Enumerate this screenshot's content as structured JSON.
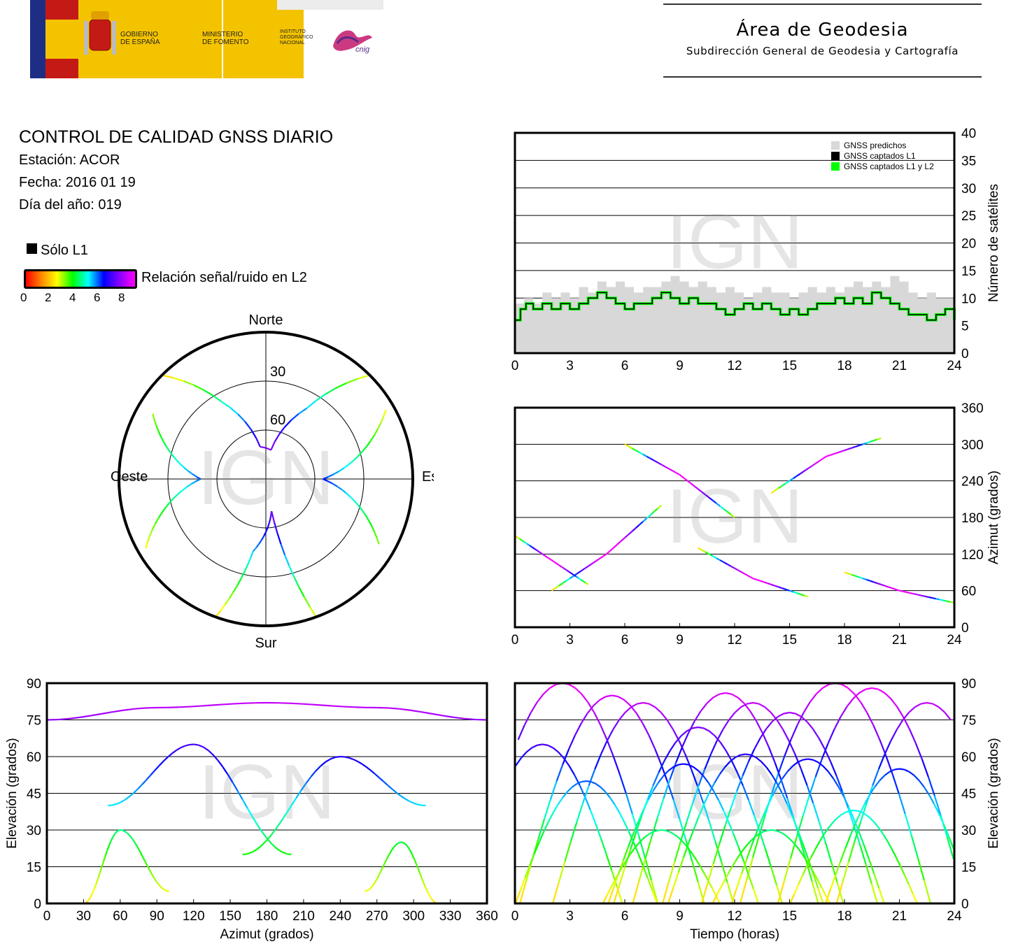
{
  "header": {
    "gov_line1": "GOBIERNO",
    "gov_line2": "DE ESPAÑA",
    "min_line1": "MINISTERIO",
    "min_line2": "DE FOMENTO",
    "inst_line1": "INSTITUTO",
    "inst_line2": "GEOGRÁFICO",
    "inst_line3": "NACIONAL",
    "cnig": "cnig",
    "area_title": "Área de Geodesia",
    "area_subtitle": "Subdirección General de Geodesia y Cartografía"
  },
  "info": {
    "title": "CONTROL DE CALIDAD GNSS DIARIO",
    "station": "Estación: ACOR",
    "date": "Fecha: 2016 01 19",
    "doy": "Día del año: 019"
  },
  "legend": {
    "l1_only": "Sólo L1",
    "snr_label": "Relación señal/ruido en L2",
    "snr_ticks": [
      "0",
      "2",
      "4",
      "6",
      "8"
    ],
    "snr_colors": [
      "#ff0000",
      "#ff8800",
      "#ffff00",
      "#00ff00",
      "#00ffff",
      "#0000ff",
      "#8800ff",
      "#ff00ff"
    ],
    "l1_color": "#000000"
  },
  "watermark": "IGN",
  "chart_data": [
    {
      "id": "sats",
      "type": "area",
      "ylabel": "Número de satélites",
      "x_ticks": [
        "0",
        "3",
        "6",
        "9",
        "12",
        "15",
        "18",
        "21",
        "24"
      ],
      "y_ticks": [
        "0",
        "5",
        "10",
        "15",
        "20",
        "25",
        "30",
        "35",
        "40"
      ],
      "xlim": [
        0,
        24
      ],
      "ylim": [
        0,
        40
      ],
      "legend": [
        "GNSS predichos",
        "GNSS captados L1",
        "GNSS captados L1 y L2"
      ],
      "colors": {
        "predicted": "#d8d8d8",
        "l1": "#000000",
        "l1l2": "#00ff00"
      },
      "predicted": [
        [
          0,
          9
        ],
        [
          0.5,
          10
        ],
        [
          1,
          9
        ],
        [
          1.5,
          11
        ],
        [
          2,
          10
        ],
        [
          2.5,
          11
        ],
        [
          3,
          10
        ],
        [
          3.5,
          12
        ],
        [
          4,
          11
        ],
        [
          4.5,
          13
        ],
        [
          5,
          12
        ],
        [
          5.5,
          13
        ],
        [
          6,
          12
        ],
        [
          6.5,
          11
        ],
        [
          7,
          12
        ],
        [
          7.5,
          12
        ],
        [
          8,
          13
        ],
        [
          8.5,
          14
        ],
        [
          9,
          13
        ],
        [
          9.5,
          12
        ],
        [
          10,
          13
        ],
        [
          10.5,
          12
        ],
        [
          11,
          11
        ],
        [
          11.5,
          12
        ],
        [
          12,
          11
        ],
        [
          12.5,
          10
        ],
        [
          13,
          11
        ],
        [
          13.5,
          12
        ],
        [
          14,
          11
        ],
        [
          14.5,
          11
        ],
        [
          15,
          10
        ],
        [
          15.5,
          11
        ],
        [
          16,
          12
        ],
        [
          16.5,
          11
        ],
        [
          17,
          12
        ],
        [
          17.5,
          11
        ],
        [
          18,
          12
        ],
        [
          18.5,
          13
        ],
        [
          19,
          12
        ],
        [
          19.5,
          13
        ],
        [
          20,
          12
        ],
        [
          20.5,
          14
        ],
        [
          21,
          13
        ],
        [
          21.5,
          11
        ],
        [
          22,
          10
        ],
        [
          22.5,
          11
        ],
        [
          23,
          10
        ],
        [
          23.5,
          10
        ],
        [
          24,
          9
        ]
      ],
      "captured": [
        [
          0,
          6
        ],
        [
          0.3,
          8
        ],
        [
          0.6,
          9
        ],
        [
          1,
          8
        ],
        [
          1.5,
          9
        ],
        [
          2,
          8
        ],
        [
          2.5,
          9
        ],
        [
          3,
          8
        ],
        [
          3.5,
          9
        ],
        [
          4,
          10
        ],
        [
          4.5,
          11
        ],
        [
          5,
          10
        ],
        [
          5.5,
          9
        ],
        [
          6,
          8
        ],
        [
          6.5,
          9
        ],
        [
          7,
          9
        ],
        [
          7.5,
          10
        ],
        [
          8,
          11
        ],
        [
          8.5,
          10
        ],
        [
          9,
          9
        ],
        [
          9.5,
          10
        ],
        [
          10,
          9
        ],
        [
          10.5,
          9
        ],
        [
          11,
          8
        ],
        [
          11.5,
          7
        ],
        [
          12,
          8
        ],
        [
          12.5,
          9
        ],
        [
          13,
          8
        ],
        [
          13.5,
          9
        ],
        [
          14,
          8
        ],
        [
          14.5,
          7
        ],
        [
          15,
          8
        ],
        [
          15.5,
          7
        ],
        [
          16,
          8
        ],
        [
          16.5,
          9
        ],
        [
          17,
          9
        ],
        [
          17.5,
          10
        ],
        [
          18,
          9
        ],
        [
          18.5,
          10
        ],
        [
          19,
          9
        ],
        [
          19.5,
          11
        ],
        [
          20,
          10
        ],
        [
          20.5,
          9
        ],
        [
          21,
          8
        ],
        [
          21.5,
          7
        ],
        [
          22,
          7
        ],
        [
          22.5,
          6
        ],
        [
          23,
          7
        ],
        [
          23.5,
          8
        ],
        [
          24,
          6
        ]
      ]
    },
    {
      "id": "azimuth",
      "type": "scatter",
      "ylabel": "Azimut (grados)",
      "x_ticks": [
        "0",
        "3",
        "6",
        "9",
        "12",
        "15",
        "18",
        "21",
        "24"
      ],
      "y_ticks": [
        "0",
        "60",
        "120",
        "180",
        "240",
        "300",
        "360"
      ],
      "xlim": [
        0,
        24
      ],
      "ylim": [
        0,
        360
      ],
      "tracks": [
        {
          "x": [
            0,
            2,
            4
          ],
          "y": [
            150,
            110,
            70
          ]
        },
        {
          "x": [
            2,
            5,
            8
          ],
          "y": [
            60,
            120,
            200
          ]
        },
        {
          "x": [
            6,
            9,
            12
          ],
          "y": [
            300,
            250,
            180
          ]
        },
        {
          "x": [
            10,
            13,
            16
          ],
          "y": [
            130,
            80,
            50
          ]
        },
        {
          "x": [
            14,
            17,
            20
          ],
          "y": [
            220,
            280,
            310
          ]
        },
        {
          "x": [
            18,
            21,
            24
          ],
          "y": [
            90,
            60,
            40
          ]
        }
      ]
    },
    {
      "id": "skyplot",
      "type": "scatter",
      "title": "",
      "labels": {
        "north": "Norte",
        "south": "Sur",
        "east": "Este",
        "west": "Oeste"
      },
      "ring_labels": [
        "30",
        "60"
      ],
      "tracks": [
        {
          "az": [
            315,
            330,
            350,
            10,
            30,
            45
          ],
          "el": [
            0,
            35,
            70,
            72,
            40,
            0
          ]
        },
        {
          "az": [
            200,
            190,
            170,
            160
          ],
          "el": [
            0,
            45,
            70,
            0
          ]
        },
        {
          "az": [
            60,
            90,
            120
          ],
          "el": [
            5,
            55,
            10
          ]
        },
        {
          "az": [
            240,
            270,
            300
          ],
          "el": [
            5,
            50,
            10
          ]
        }
      ]
    },
    {
      "id": "elev_az",
      "type": "scatter",
      "xlabel": "Azimut (grados)",
      "ylabel": "Elevación (grados)",
      "x_ticks": [
        "0",
        "30",
        "60",
        "90",
        "120",
        "150",
        "180",
        "210",
        "240",
        "270",
        "300",
        "330",
        "360"
      ],
      "y_ticks": [
        "0",
        "15",
        "30",
        "45",
        "60",
        "75",
        "90"
      ],
      "xlim": [
        0,
        360
      ],
      "ylim": [
        0,
        90
      ],
      "tracks": [
        {
          "x": [
            0,
            90,
            180,
            270,
            360
          ],
          "y": [
            75,
            80,
            82,
            80,
            75
          ]
        },
        {
          "x": [
            50,
            120,
            200
          ],
          "y": [
            40,
            65,
            20
          ]
        },
        {
          "x": [
            160,
            240,
            310
          ],
          "y": [
            20,
            60,
            40
          ]
        },
        {
          "x": [
            30,
            60,
            100
          ],
          "y": [
            0,
            30,
            5
          ]
        },
        {
          "x": [
            260,
            290,
            320
          ],
          "y": [
            5,
            25,
            0
          ]
        }
      ]
    },
    {
      "id": "elev_time",
      "type": "scatter",
      "xlabel": "Tiempo (horas)",
      "ylabel": "Elevación (grados)",
      "x_ticks": [
        "0",
        "3",
        "6",
        "9",
        "12",
        "15",
        "18",
        "21",
        "24"
      ],
      "y_ticks": [
        "0",
        "15",
        "30",
        "45",
        "60",
        "75",
        "90"
      ],
      "xlim": [
        0,
        24
      ],
      "ylim": [
        0,
        90
      ],
      "peaks": [
        [
          1.5,
          65
        ],
        [
          2.6,
          90
        ],
        [
          5.3,
          85
        ],
        [
          7,
          82
        ],
        [
          10,
          72
        ],
        [
          11.5,
          86
        ],
        [
          13,
          82
        ],
        [
          15,
          78
        ],
        [
          17.5,
          90
        ],
        [
          19.5,
          88
        ],
        [
          22.5,
          82
        ],
        [
          3.9,
          50
        ],
        [
          9.2,
          57
        ],
        [
          12.6,
          61
        ],
        [
          16,
          59
        ],
        [
          21,
          55
        ],
        [
          8,
          30
        ],
        [
          14,
          30
        ],
        [
          18.5,
          38
        ]
      ]
    }
  ]
}
